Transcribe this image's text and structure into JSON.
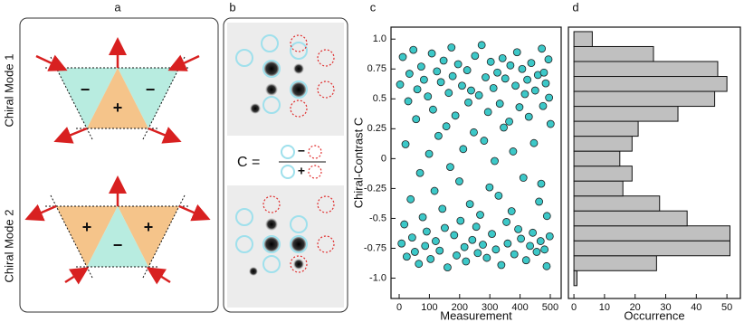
{
  "panel_labels": [
    "a",
    "b",
    "c",
    "d"
  ],
  "diagram": {
    "modes": [
      "Chiral Mode 1",
      "Chiral Mode 2"
    ],
    "mode1_signs": [
      "−",
      "+",
      "−"
    ],
    "mode2_signs": [
      "+",
      "−",
      "+"
    ],
    "formula": {
      "lhs": "C =",
      "numerator_sign": "−",
      "denominator_sign": "+"
    }
  },
  "chart_data": [
    {
      "type": "scatter",
      "xlabel": "Measurement",
      "ylabel": "Chiral-Contrast C",
      "color": "#3cc8c8",
      "xlim": [
        -27,
        536
      ],
      "xticks": [
        0,
        100,
        200,
        300,
        400,
        500
      ],
      "ylim": [
        -1.17,
        1.1
      ],
      "yticks": [
        {
          "value": 1,
          "label": "1.0"
        },
        0.75,
        0.5,
        0.25,
        0,
        -0.25,
        -0.5,
        -0.75,
        {
          "value": -1,
          "label": "-1.0"
        }
      ],
      "x": [
        3,
        8,
        12,
        17,
        21,
        25,
        30,
        34,
        38,
        43,
        47,
        52,
        56,
        60,
        65,
        69,
        73,
        78,
        82,
        86,
        91,
        95,
        99,
        104,
        108,
        112,
        117,
        121,
        125,
        130,
        134,
        138,
        143,
        147,
        151,
        156,
        160,
        164,
        169,
        173,
        177,
        182,
        186,
        190,
        195,
        199,
        203,
        208,
        212,
        216,
        221,
        225,
        229,
        234,
        238,
        242,
        247,
        251,
        255,
        260,
        264,
        268,
        273,
        277,
        281,
        286,
        290,
        294,
        299,
        303,
        307,
        312,
        316,
        320,
        325,
        329,
        333,
        338,
        342,
        346,
        351,
        355,
        359,
        364,
        368,
        372,
        377,
        381,
        385,
        390,
        394,
        398,
        403,
        407,
        411,
        416,
        420,
        424,
        429,
        433,
        437,
        442,
        446,
        450,
        455,
        459,
        463,
        468,
        472,
        476,
        481,
        485,
        489,
        494,
        498,
        501,
        496,
        488,
        479,
        470
      ],
      "values": [
        0.62,
        -0.71,
        0.85,
        -0.55,
        0.12,
        -0.82,
        0.48,
        0.71,
        -0.34,
        -0.66,
        0.91,
        -0.78,
        0.33,
        0.58,
        -0.88,
        -0.12,
        0.77,
        -0.49,
        0.66,
        -0.73,
        -0.61,
        0.52,
        0.04,
        -0.84,
        0.88,
        0.41,
        -0.27,
        -0.69,
        0.73,
        0.19,
        -0.77,
        0.64,
        -0.42,
        0.82,
        -0.58,
        0.27,
        -0.91,
        0.55,
        -0.07,
        0.93,
        0.69,
        -0.64,
        0.36,
        -0.81,
        0.79,
        -0.19,
        -0.52,
        0.61,
        0.08,
        -0.74,
        -0.86,
        0.74,
        0.47,
        -0.38,
        0.57,
        -0.68,
        0.22,
        0.86,
        -0.57,
        -0.79,
        0.53,
        -0.47,
        0.95,
        -0.72,
        0.15,
        0.68,
        -0.83,
        0.39,
        -0.24,
        0.81,
        -0.63,
        0.59,
        -0.02,
        -0.76,
        0.72,
        -0.31,
        0.46,
        -0.89,
        0.84,
        0.26,
        0.67,
        -0.53,
        -0.71,
        0.31,
        0.78,
        -0.44,
        0.06,
        -0.8,
        0.61,
        0.89,
        -0.59,
        0.43,
        -0.67,
        0.75,
        -0.16,
        0.54,
        -0.85,
        0.66,
        0.35,
        -0.73,
        0.8,
        -0.62,
        0.13,
        0.57,
        -0.78,
        0.7,
        -0.36,
        -0.69,
        0.92,
        0.44,
        -0.76,
        0.63,
        -0.48,
        0.83,
        -0.65,
        0.29,
        0.51,
        -0.9,
        0.72,
        -0.21
      ]
    },
    {
      "type": "histogram",
      "orientation": "horizontal",
      "xlabel": "Occurrence",
      "color": "#c0c0c0",
      "xlim": [
        -1.8,
        54.4
      ],
      "xticks": [
        0,
        10,
        20,
        30,
        40,
        50
      ],
      "ylim": [
        -1.17,
        1.1
      ],
      "bins": [
        -1.0625,
        -0.9375,
        -0.8125,
        -0.6875,
        -0.5625,
        -0.4375,
        -0.3125,
        -0.1875,
        -0.0625,
        0.0625,
        0.1875,
        0.3125,
        0.4375,
        0.5625,
        0.6875,
        0.8125,
        0.9375,
        1.0625
      ],
      "values": [
        1,
        27,
        51,
        51,
        37,
        28,
        16,
        19,
        15,
        19,
        21,
        34,
        46,
        50,
        47,
        26,
        6
      ]
    }
  ]
}
